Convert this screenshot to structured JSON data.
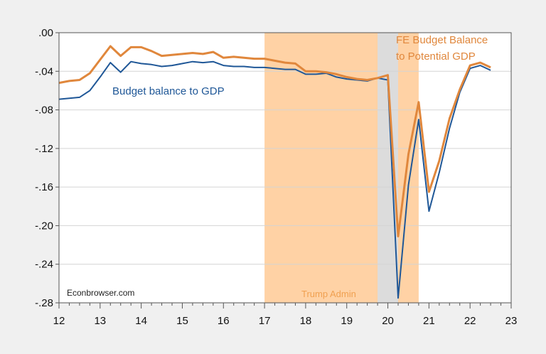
{
  "chart_data": {
    "type": "line",
    "title": "",
    "xlabel": "",
    "ylabel": "",
    "xlim": [
      12,
      23
    ],
    "ylim": [
      -0.28,
      0.0
    ],
    "grid": true,
    "x_ticks": [
      12,
      13,
      14,
      15,
      16,
      17,
      18,
      19,
      20,
      21,
      22,
      23
    ],
    "x_tick_labels": [
      "12",
      "13",
      "14",
      "15",
      "16",
      "17",
      "18",
      "19",
      "20",
      "21",
      "22",
      "23"
    ],
    "y_ticks": [
      0,
      -0.04,
      -0.08,
      -0.12,
      -0.16,
      -0.2,
      -0.24,
      -0.28
    ],
    "y_tick_labels": [
      ".00",
      "-.04",
      "-.08",
      "-.12",
      "-.16",
      "-.20",
      "-.24",
      "-.28"
    ],
    "x": [
      12,
      12.25,
      12.5,
      12.75,
      13,
      13.25,
      13.5,
      13.75,
      14,
      14.25,
      14.5,
      14.75,
      15,
      15.25,
      15.5,
      15.75,
      16,
      16.25,
      16.5,
      16.75,
      17,
      17.25,
      17.5,
      17.75,
      18,
      18.25,
      18.5,
      18.75,
      19,
      19.25,
      19.5,
      19.75,
      20,
      20.25,
      20.5,
      20.75,
      21,
      21.25,
      21.5,
      21.75,
      22,
      22.25,
      22.5
    ],
    "series": [
      {
        "name": "Budget balance to GDP",
        "color": "#1f5797",
        "values": [
          -0.069,
          -0.068,
          -0.067,
          -0.06,
          -0.046,
          -0.031,
          -0.041,
          -0.03,
          -0.032,
          -0.033,
          -0.035,
          -0.034,
          -0.032,
          -0.03,
          -0.031,
          -0.03,
          -0.034,
          -0.035,
          -0.035,
          -0.036,
          -0.036,
          -0.037,
          -0.038,
          -0.038,
          -0.043,
          -0.043,
          -0.042,
          -0.046,
          -0.048,
          -0.049,
          -0.05,
          -0.047,
          -0.049,
          -0.275,
          -0.158,
          -0.09,
          -0.185,
          -0.145,
          -0.099,
          -0.062,
          -0.037,
          -0.034,
          -0.039
        ]
      },
      {
        "name": "FE Budget Balance to Potential GDP",
        "color": "#e0873c",
        "values": [
          -0.052,
          -0.05,
          -0.049,
          -0.042,
          -0.028,
          -0.014,
          -0.024,
          -0.015,
          -0.015,
          -0.019,
          -0.024,
          -0.023,
          -0.022,
          -0.021,
          -0.022,
          -0.02,
          -0.026,
          -0.025,
          -0.026,
          -0.027,
          -0.027,
          -0.029,
          -0.031,
          -0.032,
          -0.04,
          -0.04,
          -0.041,
          -0.043,
          -0.046,
          -0.048,
          -0.049,
          -0.047,
          -0.044,
          -0.211,
          -0.126,
          -0.072,
          -0.165,
          -0.133,
          -0.089,
          -0.059,
          -0.034,
          -0.031,
          -0.036
        ]
      }
    ],
    "shaded_regions": [
      {
        "label": "Trump Admin",
        "from": 17.0,
        "to": 20.75,
        "color": "#ffd2a5"
      },
      {
        "label": "",
        "from": 19.75,
        "to": 20.25,
        "color": "#dcdcdc"
      }
    ],
    "annotations": {
      "blue_label": "Budget balance to GDP",
      "orange_label_line1": "FE Budget Balance",
      "orange_label_line2": "to Potential GDP",
      "shade_label": "Trump Admin",
      "source": "Econbrowser.com"
    }
  }
}
